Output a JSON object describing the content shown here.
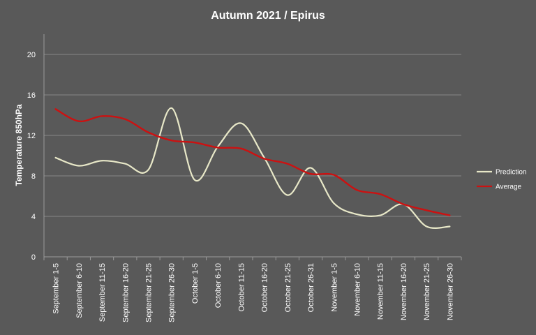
{
  "chart_data": {
    "type": "line",
    "title": "Autumn 2021 / Epirus",
    "ylabel": "Temperature 850hPa",
    "xlabel": "",
    "ylim": [
      0,
      22
    ],
    "yticks": [
      0,
      4,
      8,
      12,
      16,
      20
    ],
    "grid": "horizontal",
    "legend_position": "right",
    "categories": [
      "September 1-5",
      "September 6-10",
      "September 11-15",
      "September 16-20",
      "September 21-25",
      "September 26-30",
      "October 1-5",
      "October 6-10",
      "October 11-15",
      "October 16-20",
      "October 21-25",
      "October 26-31",
      "November 1-5",
      "November 6-10",
      "November 11-15",
      "November 16-20",
      "November 21-25",
      "November 26-30"
    ],
    "series": [
      {
        "name": "Prediction",
        "color": "#e8e8c8",
        "values": [
          9.8,
          9.0,
          9.5,
          9.2,
          8.6,
          14.7,
          7.6,
          10.9,
          13.2,
          9.8,
          6.1,
          8.8,
          5.3,
          4.2,
          4.1,
          5.2,
          3.0,
          3.0
        ]
      },
      {
        "name": "Average",
        "color": "#cc1111",
        "values": [
          14.6,
          13.4,
          13.9,
          13.6,
          12.3,
          11.5,
          11.3,
          10.8,
          10.7,
          9.7,
          9.2,
          8.2,
          8.1,
          6.6,
          6.2,
          5.2,
          4.6,
          4.1
        ]
      }
    ]
  }
}
